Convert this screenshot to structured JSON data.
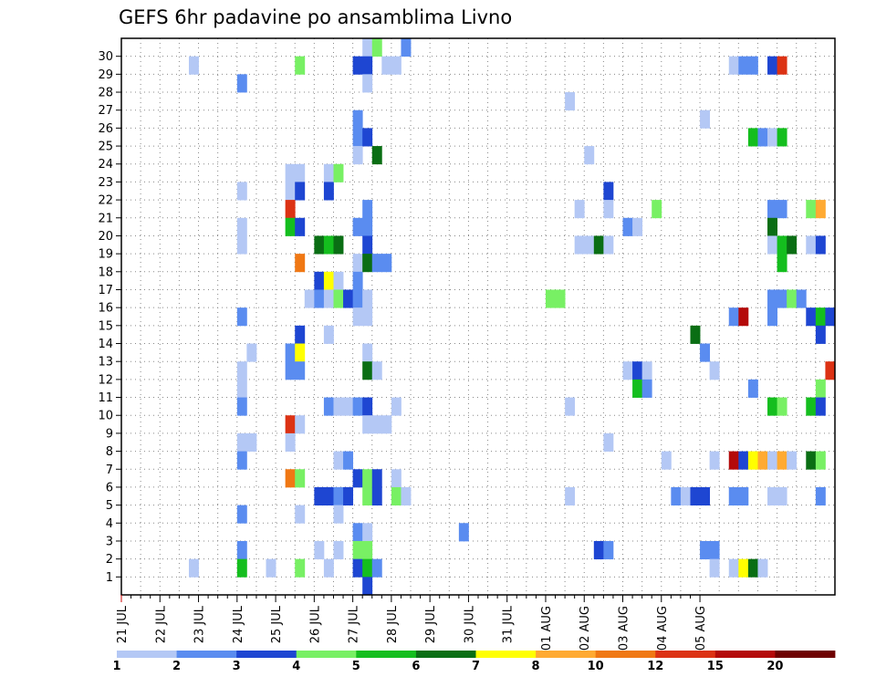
{
  "chart_data": {
    "type": "heatmap",
    "title": "GEFS 6hr padavine po ansamblima Livno",
    "xlabel": "",
    "ylabel": "",
    "ylim": [
      0,
      30
    ],
    "y_ticks": [
      1,
      2,
      3,
      4,
      5,
      6,
      7,
      8,
      9,
      10,
      11,
      12,
      13,
      14,
      15,
      16,
      17,
      18,
      19,
      20,
      21,
      22,
      23,
      24,
      25,
      26,
      27,
      28,
      29,
      30
    ],
    "x_tick_labels": [
      "21 JUL",
      "22 JUL",
      "23 JUL",
      "24 JUL",
      "25 JUL",
      "26 JUL",
      "27 JUL",
      "28 JUL",
      "29 JUL",
      "30 JUL",
      "31 JUL",
      "01 AUG",
      "02 AUG",
      "03 AUG",
      "04 AUG",
      "05 AUG"
    ],
    "grid": true,
    "colorbar": {
      "labels": [
        "1",
        "2",
        "3",
        "4",
        "5",
        "6",
        "7",
        "8",
        "10",
        "12",
        "15",
        "20"
      ],
      "colors": [
        "#b4c8f5",
        "#5a8cf0",
        "#1e46d2",
        "#78f064",
        "#14be1e",
        "#0a6e14",
        "#ffff00",
        "#ffaa32",
        "#f07814",
        "#dc3214",
        "#b40a0a",
        "#6e0000"
      ]
    },
    "legend_placement": "bottom",
    "cells_note": "Each cell: [timestep_index (6h steps from 21 JUL 00Z), ensemble_member, color_index]",
    "cells": [
      [
        7,
        29,
        0
      ],
      [
        7,
        1,
        0
      ],
      [
        12,
        28,
        1
      ],
      [
        12,
        22,
        0
      ],
      [
        12,
        20,
        0
      ],
      [
        12,
        19,
        0
      ],
      [
        12,
        15,
        1
      ],
      [
        12,
        12,
        0
      ],
      [
        12,
        11,
        0
      ],
      [
        12,
        10,
        1
      ],
      [
        12,
        8,
        0
      ],
      [
        12,
        7,
        1
      ],
      [
        12,
        4,
        1
      ],
      [
        12,
        2,
        1
      ],
      [
        12,
        1,
        4
      ],
      [
        13,
        13,
        0
      ],
      [
        13,
        8,
        0
      ],
      [
        15,
        1,
        0
      ],
      [
        17,
        23,
        0
      ],
      [
        17,
        22,
        0
      ],
      [
        17,
        21,
        9
      ],
      [
        17,
        20,
        4
      ],
      [
        17,
        13,
        1
      ],
      [
        17,
        12,
        1
      ],
      [
        17,
        9,
        9
      ],
      [
        17,
        8,
        0
      ],
      [
        17,
        6,
        8
      ],
      [
        18,
        29,
        3
      ],
      [
        18,
        23,
        0
      ],
      [
        18,
        22,
        2
      ],
      [
        18,
        20,
        2
      ],
      [
        18,
        18,
        8
      ],
      [
        18,
        14,
        2
      ],
      [
        18,
        13,
        6
      ],
      [
        18,
        12,
        1
      ],
      [
        18,
        9,
        0
      ],
      [
        18,
        6,
        3
      ],
      [
        18,
        4,
        0
      ],
      [
        18,
        1,
        3
      ],
      [
        19,
        16,
        0
      ],
      [
        20,
        19,
        5
      ],
      [
        20,
        17,
        2
      ],
      [
        20,
        16,
        1
      ],
      [
        20,
        5,
        2
      ],
      [
        20,
        2,
        0
      ],
      [
        21,
        23,
        0
      ],
      [
        21,
        22,
        2
      ],
      [
        21,
        19,
        4
      ],
      [
        21,
        17,
        6
      ],
      [
        21,
        16,
        0
      ],
      [
        21,
        14,
        0
      ],
      [
        21,
        10,
        1
      ],
      [
        21,
        5,
        2
      ],
      [
        21,
        1,
        0
      ],
      [
        22,
        23,
        3
      ],
      [
        22,
        19,
        5
      ],
      [
        22,
        17,
        0
      ],
      [
        22,
        16,
        3
      ],
      [
        22,
        10,
        0
      ],
      [
        22,
        7,
        0
      ],
      [
        22,
        5,
        1
      ],
      [
        22,
        4,
        0
      ],
      [
        22,
        2,
        0
      ],
      [
        23,
        16,
        2
      ],
      [
        23,
        10,
        0
      ],
      [
        23,
        7,
        1
      ],
      [
        23,
        5,
        2
      ],
      [
        24,
        29,
        2
      ],
      [
        24,
        26,
        1
      ],
      [
        24,
        25,
        1
      ],
      [
        24,
        24,
        0
      ],
      [
        24,
        20,
        1
      ],
      [
        24,
        18,
        0
      ],
      [
        24,
        17,
        1
      ],
      [
        24,
        16,
        1
      ],
      [
        24,
        15,
        0
      ],
      [
        24,
        10,
        1
      ],
      [
        24,
        6,
        2
      ],
      [
        24,
        3,
        1
      ],
      [
        24,
        2,
        3
      ],
      [
        24,
        1,
        2
      ],
      [
        25,
        30,
        0
      ],
      [
        25,
        29,
        2
      ],
      [
        25,
        28,
        0
      ],
      [
        25,
        25,
        2
      ],
      [
        25,
        21,
        1
      ],
      [
        25,
        20,
        1
      ],
      [
        25,
        19,
        2
      ],
      [
        25,
        18,
        5
      ],
      [
        25,
        16,
        0
      ],
      [
        25,
        15,
        0
      ],
      [
        25,
        13,
        0
      ],
      [
        25,
        12,
        5
      ],
      [
        25,
        10,
        2
      ],
      [
        25,
        9,
        0
      ],
      [
        25,
        6,
        3
      ],
      [
        25,
        5,
        3
      ],
      [
        25,
        3,
        0
      ],
      [
        25,
        2,
        3
      ],
      [
        25,
        1,
        4
      ],
      [
        25,
        0,
        2
      ],
      [
        26,
        30,
        3
      ],
      [
        26,
        24,
        5
      ],
      [
        26,
        18,
        1
      ],
      [
        26,
        12,
        0
      ],
      [
        26,
        9,
        0
      ],
      [
        26,
        6,
        2
      ],
      [
        26,
        5,
        2
      ],
      [
        26,
        1,
        1
      ],
      [
        27,
        29,
        0
      ],
      [
        27,
        18,
        1
      ],
      [
        27,
        9,
        0
      ],
      [
        28,
        29,
        0
      ],
      [
        28,
        10,
        0
      ],
      [
        28,
        6,
        0
      ],
      [
        28,
        5,
        3
      ],
      [
        29,
        30,
        1
      ],
      [
        29,
        5,
        0
      ],
      [
        35,
        3,
        1
      ],
      [
        44,
        16,
        3
      ],
      [
        45,
        16,
        3
      ],
      [
        46,
        27,
        0
      ],
      [
        46,
        10,
        0
      ],
      [
        46,
        5,
        0
      ],
      [
        47,
        21,
        0
      ],
      [
        47,
        19,
        0
      ],
      [
        48,
        24,
        0
      ],
      [
        48,
        19,
        0
      ],
      [
        49,
        19,
        5
      ],
      [
        49,
        2,
        2
      ],
      [
        50,
        22,
        2
      ],
      [
        50,
        21,
        0
      ],
      [
        50,
        19,
        0
      ],
      [
        50,
        8,
        0
      ],
      [
        50,
        2,
        1
      ],
      [
        52,
        20,
        1
      ],
      [
        52,
        12,
        0
      ],
      [
        53,
        20,
        0
      ],
      [
        53,
        12,
        2
      ],
      [
        53,
        11,
        4
      ],
      [
        54,
        12,
        0
      ],
      [
        54,
        11,
        1
      ],
      [
        55,
        21,
        3
      ],
      [
        56,
        7,
        0
      ],
      [
        57,
        5,
        1
      ],
      [
        58,
        5,
        0
      ],
      [
        59,
        14,
        5
      ],
      [
        59,
        5,
        2
      ],
      [
        60,
        26,
        0
      ],
      [
        60,
        13,
        1
      ],
      [
        60,
        5,
        2
      ],
      [
        60,
        2,
        1
      ],
      [
        61,
        12,
        0
      ],
      [
        61,
        7,
        0
      ],
      [
        61,
        2,
        1
      ],
      [
        61,
        1,
        0
      ],
      [
        63,
        29,
        0
      ],
      [
        63,
        15,
        1
      ],
      [
        63,
        7,
        10
      ],
      [
        63,
        5,
        1
      ],
      [
        63,
        1,
        0
      ],
      [
        64,
        29,
        1
      ],
      [
        64,
        15,
        10
      ],
      [
        64,
        7,
        2
      ],
      [
        64,
        5,
        1
      ],
      [
        64,
        1,
        6
      ],
      [
        65,
        29,
        1
      ],
      [
        65,
        25,
        4
      ],
      [
        65,
        11,
        1
      ],
      [
        65,
        7,
        6
      ],
      [
        65,
        1,
        5
      ],
      [
        66,
        25,
        1
      ],
      [
        66,
        7,
        7
      ],
      [
        66,
        1,
        0
      ],
      [
        67,
        29,
        2
      ],
      [
        67,
        25,
        0
      ],
      [
        67,
        21,
        1
      ],
      [
        67,
        20,
        5
      ],
      [
        67,
        19,
        0
      ],
      [
        67,
        16,
        1
      ],
      [
        67,
        15,
        1
      ],
      [
        67,
        10,
        4
      ],
      [
        67,
        7,
        0
      ],
      [
        67,
        5,
        0
      ],
      [
        68,
        29,
        9
      ],
      [
        68,
        25,
        4
      ],
      [
        68,
        21,
        1
      ],
      [
        68,
        19,
        4
      ],
      [
        68,
        18,
        4
      ],
      [
        68,
        16,
        1
      ],
      [
        68,
        10,
        3
      ],
      [
        68,
        7,
        7
      ],
      [
        68,
        5,
        0
      ],
      [
        69,
        19,
        5
      ],
      [
        69,
        16,
        3
      ],
      [
        69,
        7,
        0
      ],
      [
        70,
        16,
        1
      ],
      [
        71,
        21,
        3
      ],
      [
        71,
        19,
        0
      ],
      [
        71,
        15,
        2
      ],
      [
        71,
        10,
        4
      ],
      [
        71,
        7,
        5
      ],
      [
        72,
        21,
        7
      ],
      [
        72,
        19,
        2
      ],
      [
        72,
        15,
        4
      ],
      [
        72,
        14,
        2
      ],
      [
        72,
        11,
        3
      ],
      [
        72,
        10,
        2
      ],
      [
        72,
        7,
        3
      ],
      [
        72,
        5,
        1
      ],
      [
        73,
        15,
        2
      ],
      [
        73,
        12,
        9
      ]
    ]
  }
}
